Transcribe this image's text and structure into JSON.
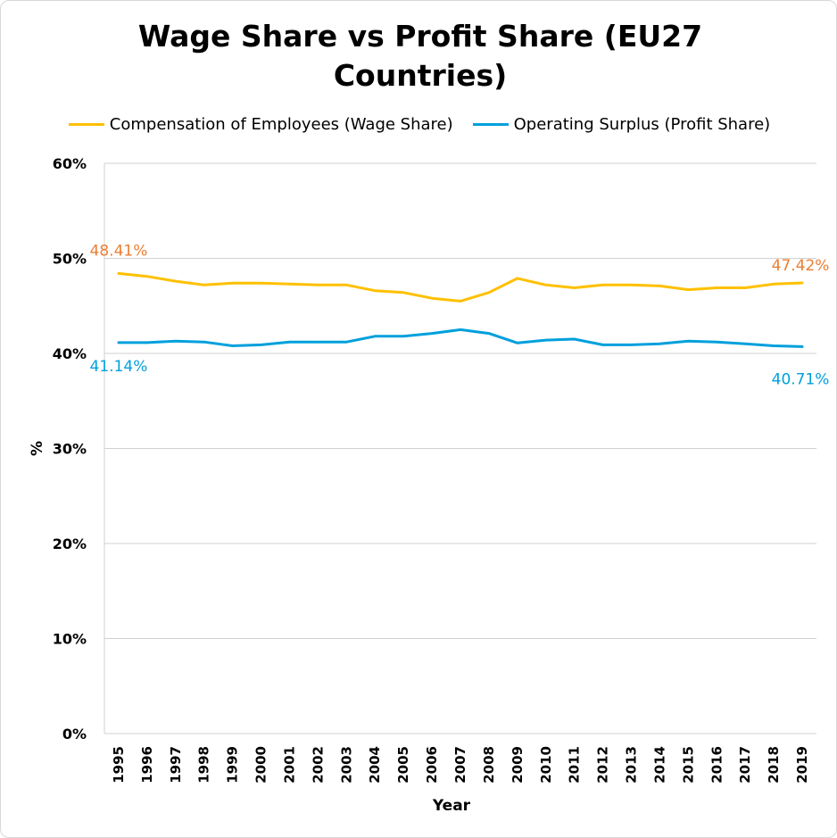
{
  "chart_data": {
    "type": "line",
    "title": "Wage Share vs Profit Share (EU27 Countries)",
    "title_lines": [
      "Wage Share vs Profit Share (EU27",
      "Countries)"
    ],
    "xlabel": "Year",
    "ylabel": "%",
    "ylim": [
      0,
      60
    ],
    "yticks": [
      0,
      10,
      20,
      30,
      40,
      50,
      60
    ],
    "ytick_labels": [
      "0%",
      "10%",
      "20%",
      "30%",
      "40%",
      "50%",
      "60%"
    ],
    "grid": true,
    "legend_position": "top",
    "categories": [
      "1995",
      "1996",
      "1997",
      "1998",
      "1999",
      "2000",
      "2001",
      "2002",
      "2003",
      "2004",
      "2005",
      "2006",
      "2007",
      "2008",
      "2009",
      "2010",
      "2011",
      "2012",
      "2013",
      "2014",
      "2015",
      "2016",
      "2017",
      "2018",
      "2019"
    ],
    "series": [
      {
        "name": "Compensation of Employees (Wage Share)",
        "color": "#FFC000",
        "label_color": "#ED7D31",
        "values": [
          48.41,
          48.1,
          47.6,
          47.2,
          47.4,
          47.4,
          47.3,
          47.2,
          47.2,
          46.6,
          46.4,
          45.8,
          45.5,
          46.4,
          47.9,
          47.2,
          46.9,
          47.2,
          47.2,
          47.1,
          46.7,
          46.9,
          46.9,
          47.3,
          47.42
        ],
        "first_label": "48.41%",
        "last_label": "47.42%"
      },
      {
        "name": "Operating Surplus (Profit Share)",
        "color": "#00A0DC",
        "label_color": "#00A0DC",
        "values": [
          41.14,
          41.14,
          41.3,
          41.2,
          40.8,
          40.9,
          41.2,
          41.2,
          41.2,
          41.8,
          41.8,
          42.1,
          42.5,
          42.1,
          41.1,
          41.4,
          41.5,
          40.9,
          40.9,
          41.0,
          41.3,
          41.2,
          41.0,
          40.8,
          40.71
        ],
        "first_label": "41.14%",
        "last_label": "40.71%"
      }
    ]
  }
}
